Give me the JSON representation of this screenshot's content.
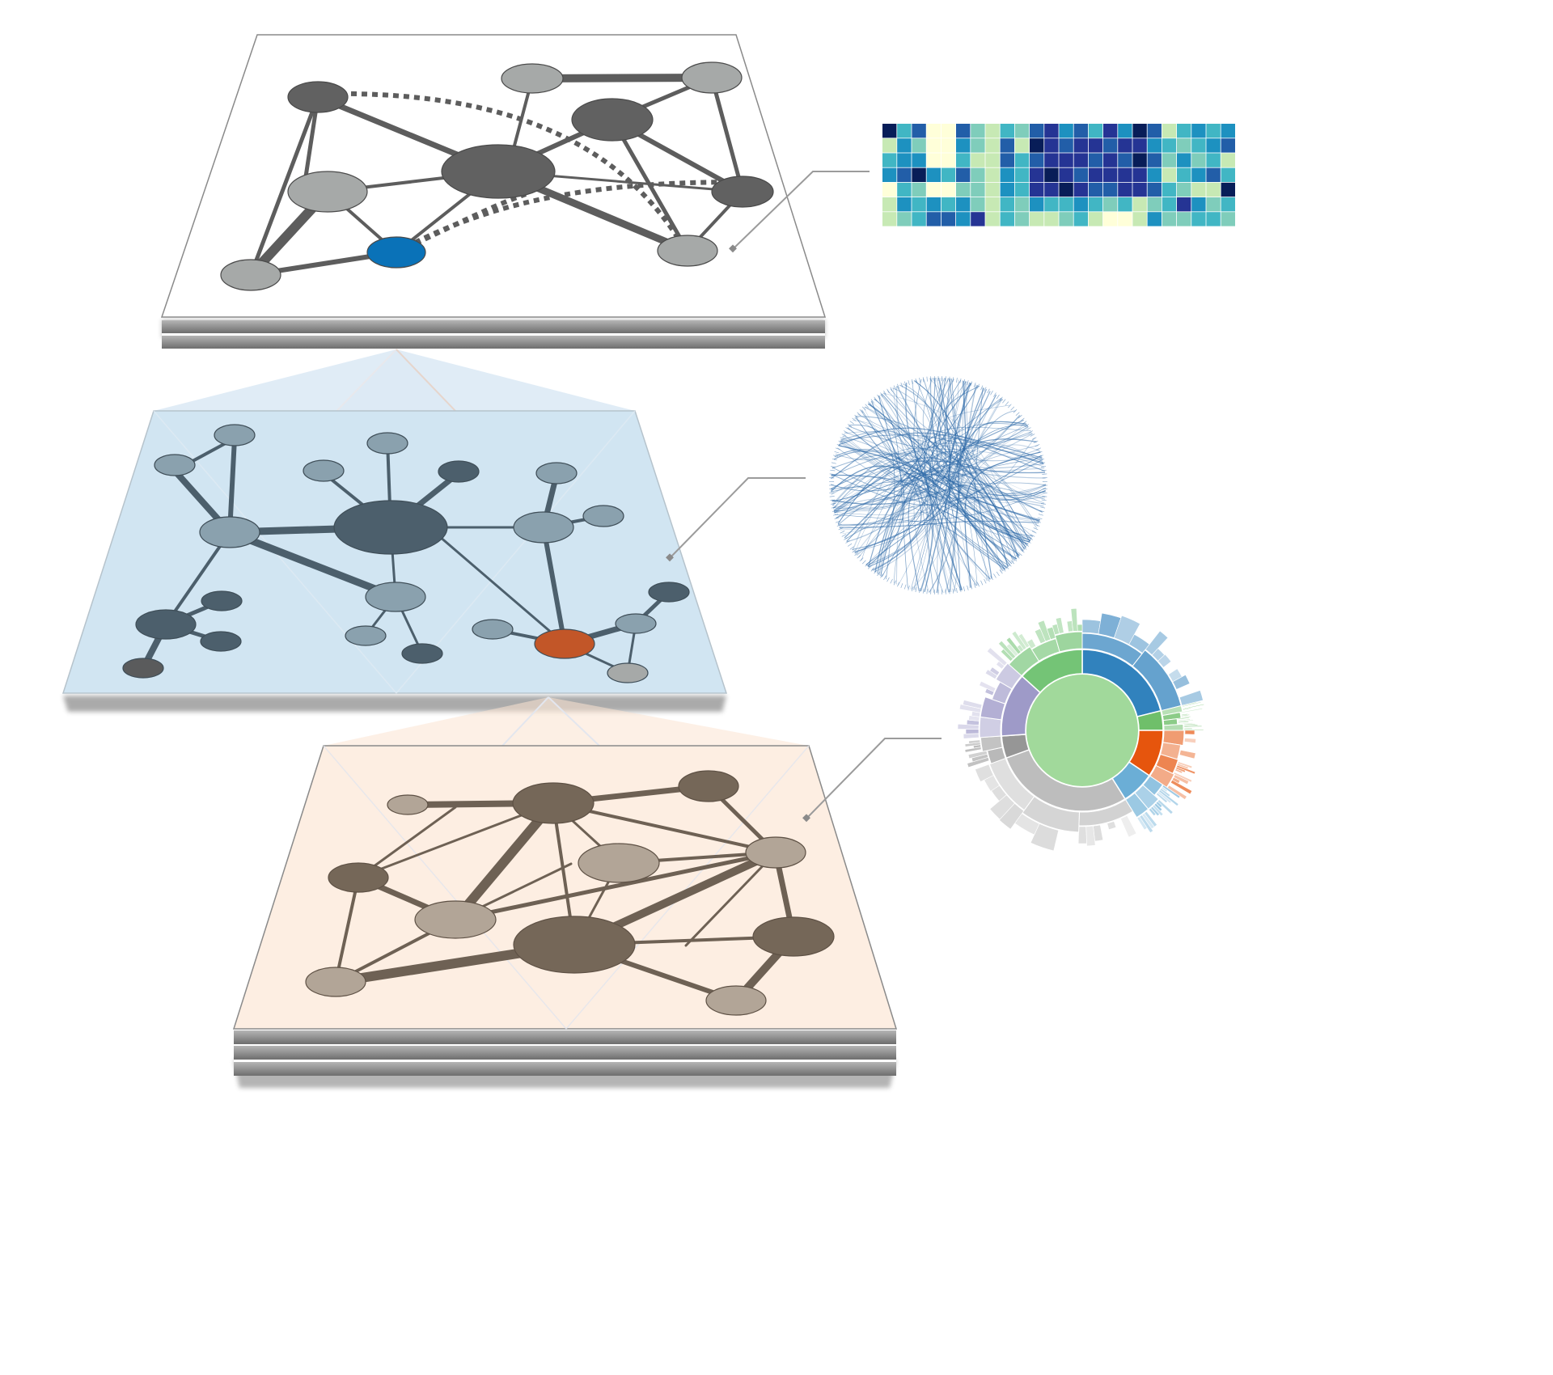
{
  "colors": {
    "background": "#ffffff",
    "top_plane": "#ffffff",
    "top_node_dark": "#616161",
    "top_node_light": "#a6a9a8",
    "top_node_highlight": "#0a72b8",
    "top_edge": "#5d5d5d",
    "mid_plane": "#d1e5f2",
    "mid_node_dark": "#4c5f6c",
    "mid_node_light": "#8aa1ae",
    "mid_node_highlight": "#c25628",
    "mid_node_gray": "#5a5b5c",
    "bottom_plane": "#fdeee2",
    "bottom_node_dark": "#756758",
    "bottom_node_light": "#b2a597",
    "connector": "#9b9b9b",
    "heatmap_scale": [
      "#ffffd9",
      "#c7e9b4",
      "#7fcdbb",
      "#41b6c4",
      "#1d91c0",
      "#225ea8",
      "#253494",
      "#081d58"
    ],
    "bundle_stroke": "#2e6aa8",
    "sunburst_center": "#a1d99b"
  },
  "layers": [
    {
      "name": "top-layer",
      "style": "gray",
      "stacked_sheets": 2
    },
    {
      "name": "middle-layer",
      "style": "blue",
      "stacked_sheets": 0
    },
    {
      "name": "bottom-layer",
      "style": "beige",
      "stacked_sheets": 3
    }
  ],
  "views": [
    {
      "name": "heatmap-view",
      "rows": 7,
      "cols": 24
    },
    {
      "name": "edge-bundling-view"
    },
    {
      "name": "sunburst-view"
    }
  ],
  "heatmap": {
    "rows": [
      [
        7,
        3,
        5,
        0,
        0,
        5,
        2,
        1,
        3,
        2,
        5,
        6,
        4,
        5,
        3,
        6,
        4,
        7,
        5,
        1,
        3,
        4,
        3,
        4
      ],
      [
        1,
        4,
        2,
        0,
        0,
        4,
        2,
        1,
        5,
        1,
        7,
        6,
        5,
        6,
        6,
        5,
        6,
        6,
        4,
        3,
        2,
        3,
        4,
        5
      ],
      [
        3,
        4,
        4,
        0,
        0,
        3,
        1,
        1,
        5,
        3,
        5,
        6,
        6,
        6,
        5,
        6,
        5,
        7,
        5,
        2,
        4,
        2,
        3,
        1
      ],
      [
        4,
        5,
        7,
        4,
        3,
        5,
        2,
        1,
        4,
        3,
        6,
        7,
        6,
        5,
        6,
        6,
        6,
        6,
        4,
        1,
        3,
        4,
        5,
        3
      ],
      [
        0,
        3,
        2,
        0,
        0,
        2,
        2,
        1,
        4,
        3,
        6,
        6,
        7,
        6,
        5,
        5,
        6,
        6,
        5,
        3,
        2,
        1,
        1,
        7
      ],
      [
        1,
        4,
        3,
        4,
        3,
        4,
        2,
        1,
        3,
        2,
        4,
        3,
        3,
        4,
        3,
        2,
        3,
        1,
        2,
        3,
        6,
        4,
        2,
        3
      ],
      [
        1,
        2,
        3,
        5,
        5,
        4,
        6,
        1,
        3,
        2,
        1,
        1,
        2,
        3,
        1,
        0,
        0,
        1,
        4,
        2,
        2,
        3,
        3,
        2
      ]
    ]
  },
  "sunburst": {
    "inner_groups": [
      {
        "name": "blue",
        "span": 76,
        "color": "#3182bd"
      },
      {
        "name": "green",
        "span": 14,
        "color": "#6fbf6a"
      },
      {
        "name": "orange",
        "span": 34,
        "color": "#e6550d"
      },
      {
        "name": "blue-2",
        "span": 24,
        "color": "#6baed6"
      },
      {
        "name": "gray",
        "span": 102,
        "color": "#bdbdbd"
      },
      {
        "name": "gray-dark",
        "span": 16,
        "color": "#969696"
      },
      {
        "name": "purple",
        "span": 46,
        "color": "#9e9ac8"
      },
      {
        "name": "green-2",
        "span": 48,
        "color": "#74c476"
      }
    ]
  }
}
